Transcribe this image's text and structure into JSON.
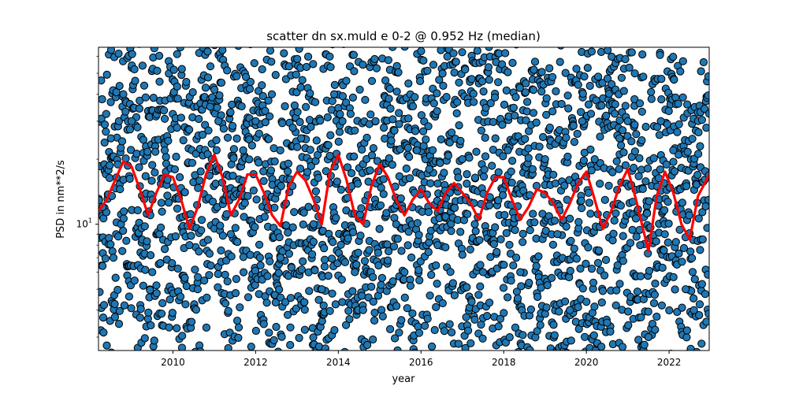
{
  "chart_data": {
    "type": "scatter",
    "title": "scatter dn sx.muld e 0-2 @ 0.952 Hz (median)",
    "xlabel": "year",
    "ylabel": "PSD in nm**2/s",
    "xlim": [
      2008.2,
      2022.97
    ],
    "ylim": [
      2.6,
      66
    ],
    "yscale": "log",
    "x_ticks": [
      2010,
      2012,
      2014,
      2016,
      2018,
      2020,
      2022
    ],
    "x_tick_labels": [
      "2010",
      "2012",
      "2014",
      "2016",
      "2018",
      "2020",
      "2022"
    ],
    "y_major_ticks": [
      10
    ],
    "y_major_tick_labels": [
      "10"
    ],
    "y_major_tick_exponent": "1",
    "y_minor_ticks": [
      3,
      4,
      5,
      6,
      7,
      8,
      9,
      20,
      30,
      40,
      50,
      60
    ],
    "grid": false,
    "legend": "none",
    "scatter_color": "#1f77b4",
    "scatter_edge_color": "#000000",
    "line_color": "#ff0000",
    "series": [
      {
        "kind": "scatter",
        "note_values": "dense daily cloud; envelope per year given as [x, y] samples",
        "points": [
          [
            2008.3,
            12
          ],
          [
            2008.5,
            25
          ],
          [
            2008.8,
            40
          ],
          [
            2009.0,
            30
          ],
          [
            2009.2,
            15
          ],
          [
            2009.5,
            6
          ],
          [
            2009.8,
            22
          ],
          [
            2010.1,
            28
          ],
          [
            2010.4,
            8
          ],
          [
            2010.6,
            5
          ],
          [
            2010.9,
            35
          ],
          [
            2011.1,
            30
          ],
          [
            2011.4,
            9
          ],
          [
            2011.7,
            22
          ],
          [
            2012.0,
            30
          ],
          [
            2012.3,
            12
          ],
          [
            2012.6,
            7
          ],
          [
            2012.9,
            28
          ],
          [
            2013.1,
            25
          ],
          [
            2013.4,
            10
          ],
          [
            2013.6,
            5
          ],
          [
            2013.9,
            40
          ],
          [
            2014.1,
            30
          ],
          [
            2014.4,
            6
          ],
          [
            2014.6,
            4
          ],
          [
            2014.9,
            30
          ],
          [
            2015.1,
            28
          ],
          [
            2015.4,
            10
          ],
          [
            2015.6,
            6
          ],
          [
            2015.9,
            22
          ],
          [
            2016.2,
            18
          ],
          [
            2016.4,
            8
          ],
          [
            2016.7,
            14
          ],
          [
            2017.0,
            20
          ],
          [
            2017.3,
            10
          ],
          [
            2017.5,
            6
          ],
          [
            2017.8,
            25
          ],
          [
            2018.1,
            22
          ],
          [
            2018.4,
            6
          ],
          [
            2018.7,
            18
          ],
          [
            2019.0,
            20
          ],
          [
            2019.3,
            9
          ],
          [
            2019.6,
            4
          ],
          [
            2019.9,
            30
          ],
          [
            2020.2,
            20
          ],
          [
            2020.5,
            3.5
          ],
          [
            2020.8,
            25
          ],
          [
            2021.0,
            30
          ],
          [
            2021.3,
            8
          ],
          [
            2021.5,
            3
          ],
          [
            2021.8,
            30
          ],
          [
            2022.1,
            22
          ],
          [
            2022.4,
            5
          ],
          [
            2022.6,
            4
          ],
          [
            2022.9,
            28
          ]
        ]
      },
      {
        "kind": "line",
        "name": "",
        "points": [
          [
            2008.2,
            11.5
          ],
          [
            2008.4,
            13
          ],
          [
            2008.6,
            16
          ],
          [
            2008.8,
            19.5
          ],
          [
            2009.0,
            18.5
          ],
          [
            2009.2,
            14.5
          ],
          [
            2009.4,
            11
          ],
          [
            2009.6,
            14
          ],
          [
            2009.8,
            17
          ],
          [
            2010.0,
            16.5
          ],
          [
            2010.2,
            13
          ],
          [
            2010.4,
            9.5
          ],
          [
            2010.6,
            12
          ],
          [
            2010.8,
            17
          ],
          [
            2011.0,
            21
          ],
          [
            2011.2,
            16.5
          ],
          [
            2011.4,
            11
          ],
          [
            2011.6,
            13
          ],
          [
            2011.8,
            17
          ],
          [
            2012.0,
            17
          ],
          [
            2012.2,
            14
          ],
          [
            2012.4,
            11
          ],
          [
            2012.6,
            9.8
          ],
          [
            2012.8,
            15
          ],
          [
            2013.0,
            17.5
          ],
          [
            2013.2,
            16
          ],
          [
            2013.4,
            13
          ],
          [
            2013.6,
            10
          ],
          [
            2013.8,
            17.5
          ],
          [
            2014.0,
            21
          ],
          [
            2014.2,
            16
          ],
          [
            2014.4,
            11
          ],
          [
            2014.6,
            10
          ],
          [
            2014.8,
            15
          ],
          [
            2015.0,
            19
          ],
          [
            2015.2,
            16.5
          ],
          [
            2015.4,
            13
          ],
          [
            2015.6,
            11
          ],
          [
            2015.8,
            13
          ],
          [
            2016.0,
            14.5
          ],
          [
            2016.2,
            12.5
          ],
          [
            2016.4,
            11.5
          ],
          [
            2016.6,
            14
          ],
          [
            2016.8,
            15.5
          ],
          [
            2017.0,
            14
          ],
          [
            2017.2,
            12.5
          ],
          [
            2017.4,
            10.5
          ],
          [
            2017.6,
            14
          ],
          [
            2017.8,
            16.5
          ],
          [
            2018.0,
            16.5
          ],
          [
            2018.2,
            13
          ],
          [
            2018.4,
            10.5
          ],
          [
            2018.6,
            12
          ],
          [
            2018.8,
            14.5
          ],
          [
            2019.0,
            14
          ],
          [
            2019.2,
            12.5
          ],
          [
            2019.4,
            10.5
          ],
          [
            2019.6,
            12.5
          ],
          [
            2019.8,
            15.5
          ],
          [
            2020.0,
            17.5
          ],
          [
            2020.2,
            13
          ],
          [
            2020.4,
            9.5
          ],
          [
            2020.6,
            11.5
          ],
          [
            2020.8,
            15
          ],
          [
            2021.0,
            18
          ],
          [
            2021.2,
            13
          ],
          [
            2021.5,
            7.5
          ],
          [
            2021.7,
            13.5
          ],
          [
            2021.9,
            17.5
          ],
          [
            2022.1,
            14
          ],
          [
            2022.3,
            10
          ],
          [
            2022.5,
            8.5
          ],
          [
            2022.7,
            13.5
          ],
          [
            2022.97,
            17
          ]
        ]
      }
    ]
  }
}
